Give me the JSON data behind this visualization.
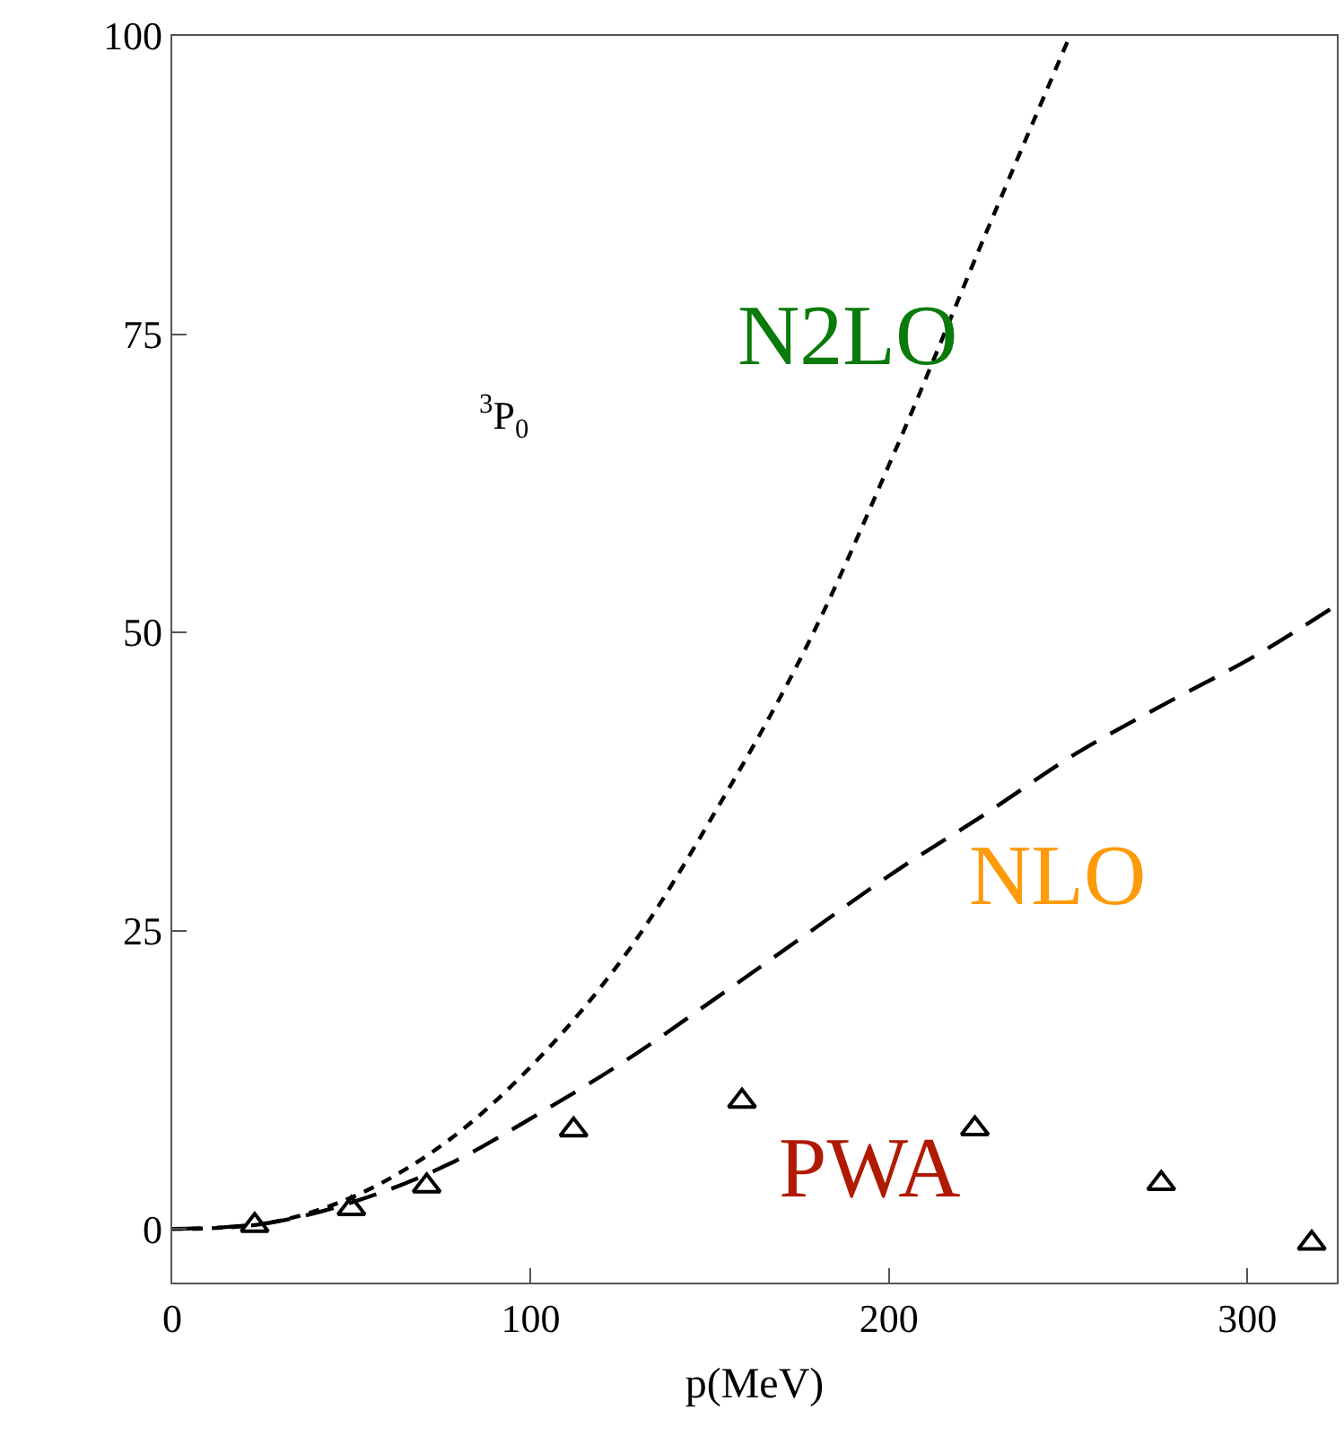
{
  "chart_data": {
    "type": "line",
    "xlabel": "p(MeV)",
    "xlim": [
      0,
      325
    ],
    "xticks": [
      0,
      100,
      200,
      300
    ],
    "ylim": [
      -4.5,
      100
    ],
    "yticks": [
      0,
      25,
      50,
      75,
      100
    ],
    "grid": false,
    "legend": false,
    "series": [
      {
        "name": "N2LO",
        "color": "#000000",
        "line_style": "dotted",
        "marker": "none",
        "x": [
          0,
          27,
          52,
          77,
          102,
          127,
          152,
          177,
          202,
          227,
          250.5
        ],
        "values": [
          0,
          0.5,
          2.9,
          7.4,
          14.2,
          23.2,
          35.2,
          48.8,
          65.4,
          83.4,
          100
        ]
      },
      {
        "name": "NLO",
        "color": "#000000",
        "line_style": "dashed",
        "marker": "none",
        "x": [
          0,
          27,
          52,
          77,
          102,
          127,
          152,
          177,
          202,
          227,
          252,
          277,
          302,
          325
        ],
        "values": [
          0,
          0.5,
          2.4,
          5.4,
          9.6,
          14.2,
          19.4,
          24.7,
          30,
          34.8,
          39.8,
          44,
          48,
          52.3
        ]
      },
      {
        "name": "PWA",
        "type": "scatter",
        "color": "#000000",
        "marker": "triangle",
        "x": [
          23,
          50,
          71,
          112,
          159,
          224,
          276,
          318
        ],
        "values": [
          0.3,
          1.7,
          3.6,
          8.3,
          10.7,
          8.4,
          3.8,
          -1.2
        ]
      }
    ],
    "annotations": [
      "$^{3}$P$_{0}$"
    ]
  }
}
